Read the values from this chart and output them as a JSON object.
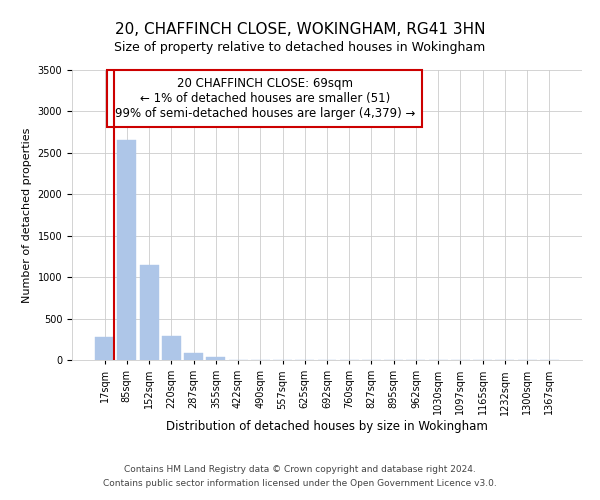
{
  "title": "20, CHAFFINCH CLOSE, WOKINGHAM, RG41 3HN",
  "subtitle": "Size of property relative to detached houses in Wokingham",
  "xlabel": "Distribution of detached houses by size in Wokingham",
  "ylabel": "Number of detached properties",
  "bar_labels": [
    "17sqm",
    "85sqm",
    "152sqm",
    "220sqm",
    "287sqm",
    "355sqm",
    "422sqm",
    "490sqm",
    "557sqm",
    "625sqm",
    "692sqm",
    "760sqm",
    "827sqm",
    "895sqm",
    "962sqm",
    "1030sqm",
    "1097sqm",
    "1165sqm",
    "1232sqm",
    "1300sqm",
    "1367sqm"
  ],
  "bar_values": [
    280,
    2650,
    1150,
    285,
    90,
    35,
    3,
    0,
    0,
    0,
    0,
    0,
    0,
    0,
    0,
    0,
    0,
    0,
    0,
    0,
    0
  ],
  "bar_color": "#aec6e8",
  "annotation_title": "20 CHAFFINCH CLOSE: 69sqm",
  "annotation_line1": "← 1% of detached houses are smaller (51)",
  "annotation_line2": "99% of semi-detached houses are larger (4,379) →",
  "annotation_box_color": "#ffffff",
  "annotation_border_color": "#cc0000",
  "property_line_color": "#cc0000",
  "property_line_x": 0.42,
  "ylim": [
    0,
    3500
  ],
  "yticks": [
    0,
    500,
    1000,
    1500,
    2000,
    2500,
    3000,
    3500
  ],
  "footnote1": "Contains HM Land Registry data © Crown copyright and database right 2024.",
  "footnote2": "Contains public sector information licensed under the Open Government Licence v3.0.",
  "title_fontsize": 11,
  "subtitle_fontsize": 9,
  "xlabel_fontsize": 8.5,
  "ylabel_fontsize": 8,
  "tick_fontsize": 7,
  "annotation_fontsize": 8.5,
  "footnote_fontsize": 6.5
}
